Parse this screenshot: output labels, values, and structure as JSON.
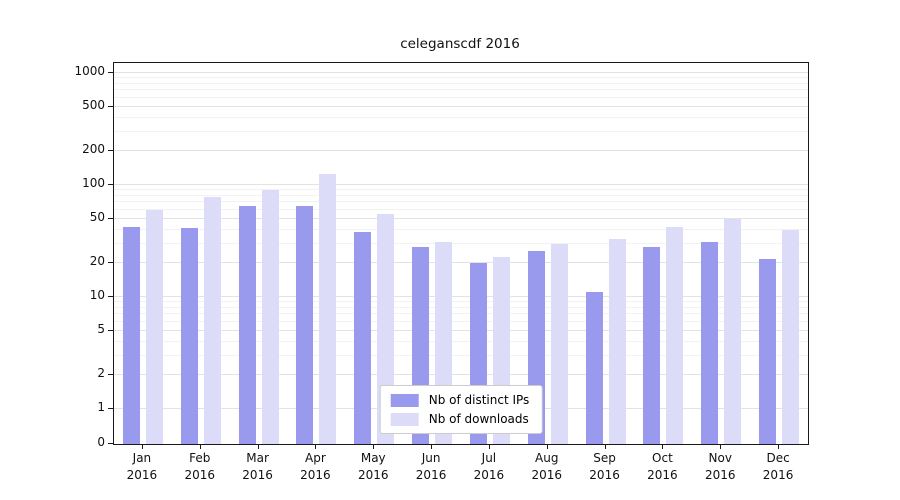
{
  "chart_data": {
    "type": "bar",
    "title": "celeganscdf 2016",
    "categories": [
      "Jan",
      "Feb",
      "Mar",
      "Apr",
      "May",
      "Jun",
      "Jul",
      "Aug",
      "Sep",
      "Oct",
      "Nov",
      "Dec"
    ],
    "year_label": "2016",
    "series": [
      {
        "name": "Nb of distinct IPs",
        "color": "#9999ee",
        "values": [
          42,
          41,
          65,
          65,
          38,
          28,
          20,
          26,
          11,
          28,
          31,
          22
        ]
      },
      {
        "name": "Nb of downloads",
        "color": "#dcdcf8",
        "values": [
          60,
          78,
          90,
          125,
          55,
          31,
          23,
          30,
          33,
          42,
          50,
          40
        ]
      }
    ],
    "yscale": "log",
    "yticks": [
      0,
      1,
      2,
      5,
      10,
      20,
      50,
      100,
      200,
      500,
      1000
    ],
    "ylim": [
      0,
      1000
    ],
    "grid": true,
    "legend_position": "lower center"
  }
}
